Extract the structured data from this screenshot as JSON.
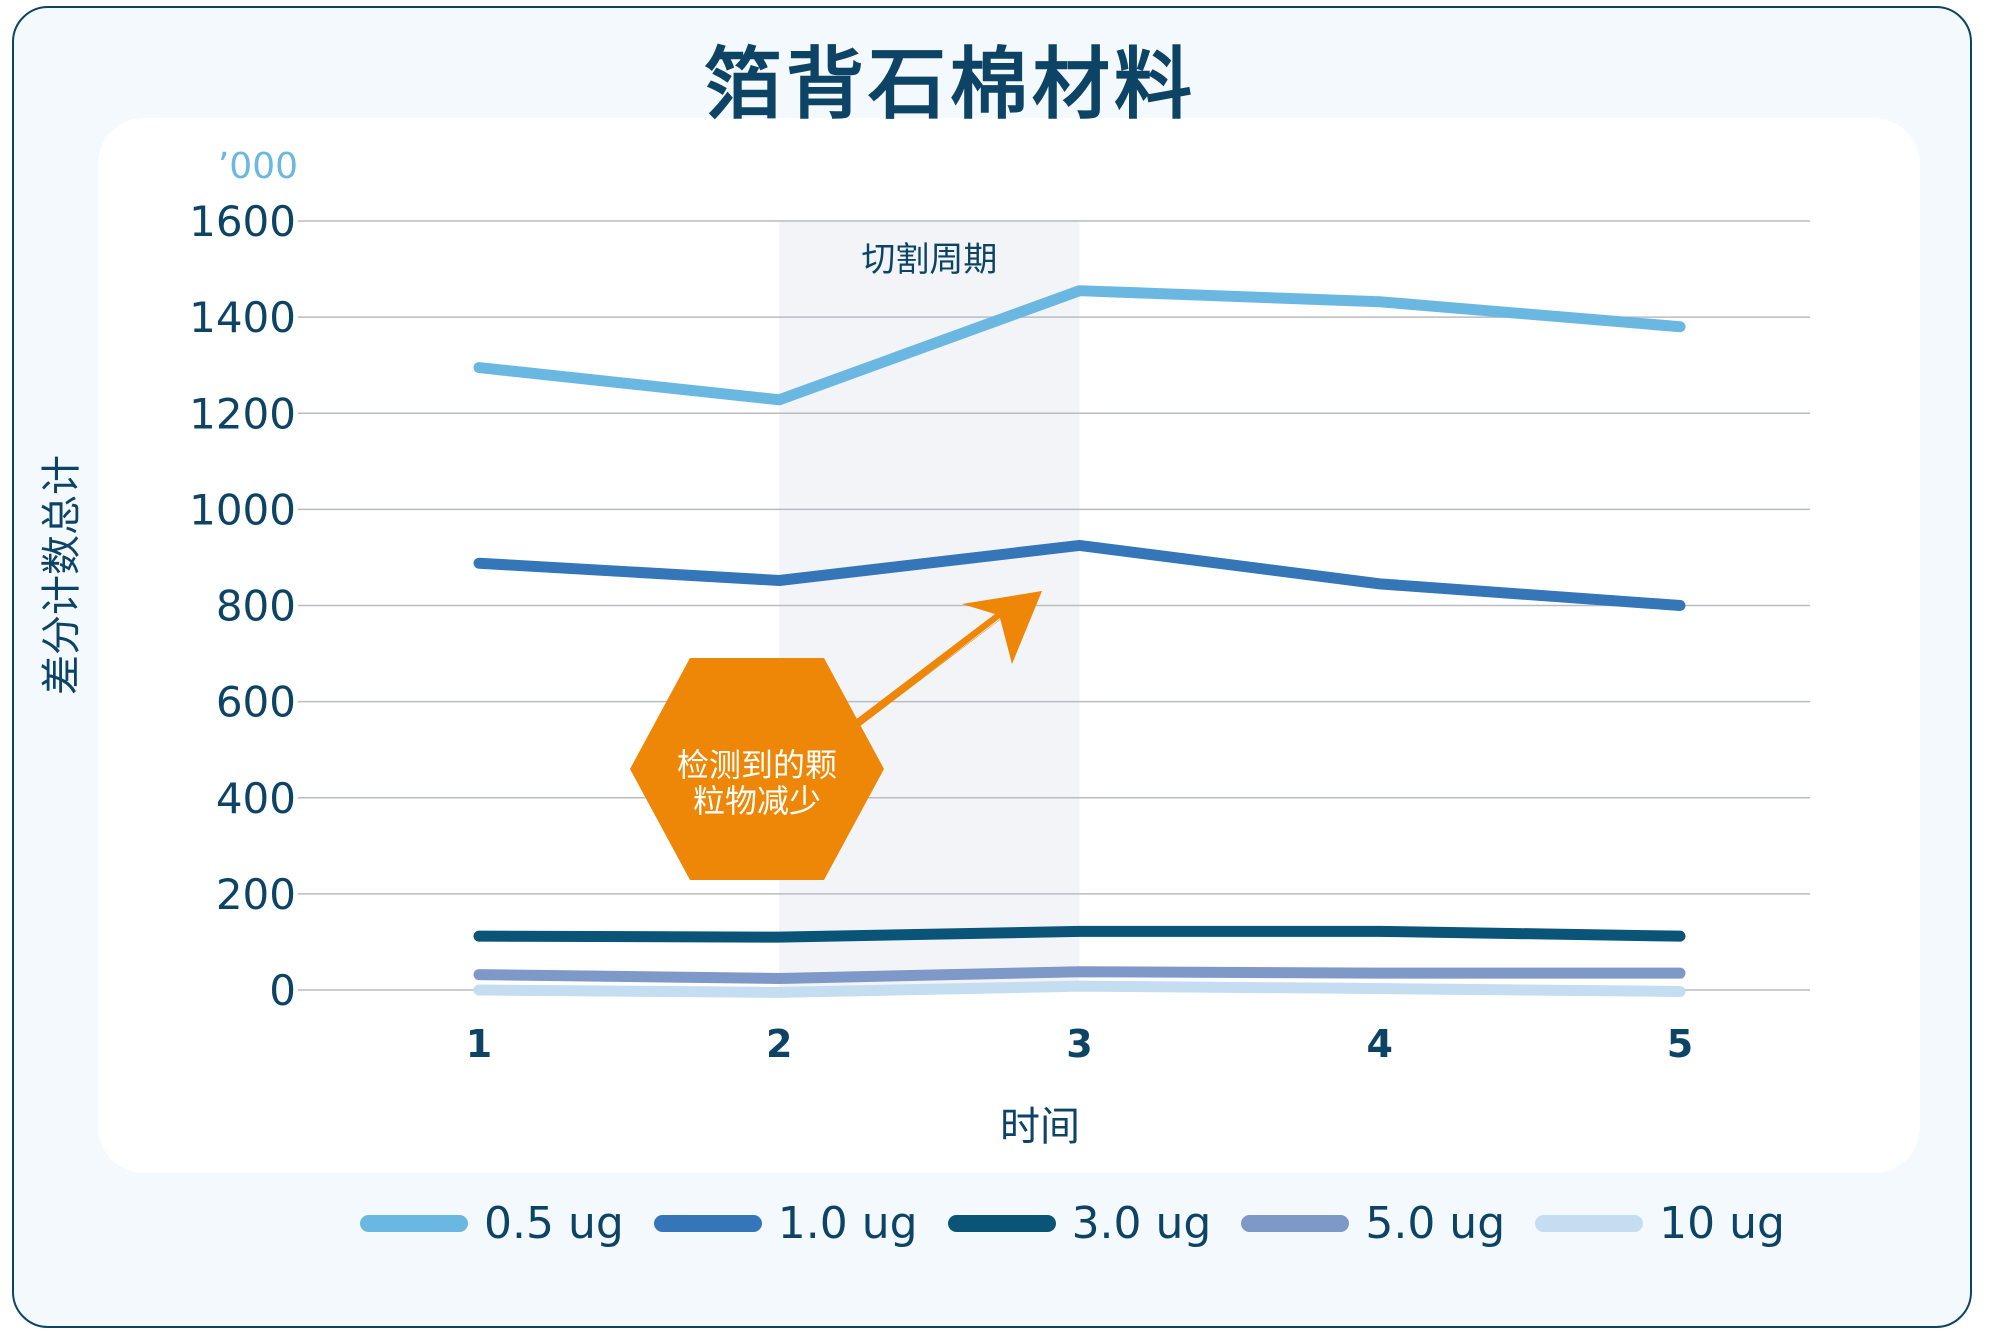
{
  "chart_data": {
    "type": "line",
    "title": "箔背石棉材料",
    "xlabel": "时间",
    "ylabel": "差分计数总计",
    "y_unit": "’000",
    "categories": [
      "1",
      "2",
      "3",
      "4",
      "5"
    ],
    "ylim": [
      0,
      1600
    ],
    "yticks": [
      "0",
      "200",
      "400",
      "600",
      "800",
      "1000",
      "1200",
      "1400",
      "1600"
    ],
    "grid": true,
    "legend_position": "bottom",
    "series": [
      {
        "name": "0.5 ug",
        "color": "#6ab8e2",
        "values": [
          1295,
          1228,
          1455,
          1432,
          1380
        ]
      },
      {
        "name": "1.0 ug",
        "color": "#3476b8",
        "values": [
          888,
          852,
          925,
          845,
          800
        ]
      },
      {
        "name": "3.0 ug",
        "color": "#0a5478",
        "values": [
          112,
          110,
          122,
          122,
          112
        ]
      },
      {
        "name": "5.0 ug",
        "color": "#7e98c8",
        "values": [
          32,
          24,
          38,
          35,
          35
        ]
      },
      {
        "name": "10 ug",
        "color": "#c4ddf0",
        "values": [
          0,
          -5,
          8,
          3,
          -3
        ]
      }
    ],
    "highlight_region": {
      "label": "切割周期",
      "x_range": [
        "2",
        "3"
      ]
    },
    "annotation": {
      "text_line1": "检测到的颗",
      "text_line2": "粒物减少"
    }
  }
}
